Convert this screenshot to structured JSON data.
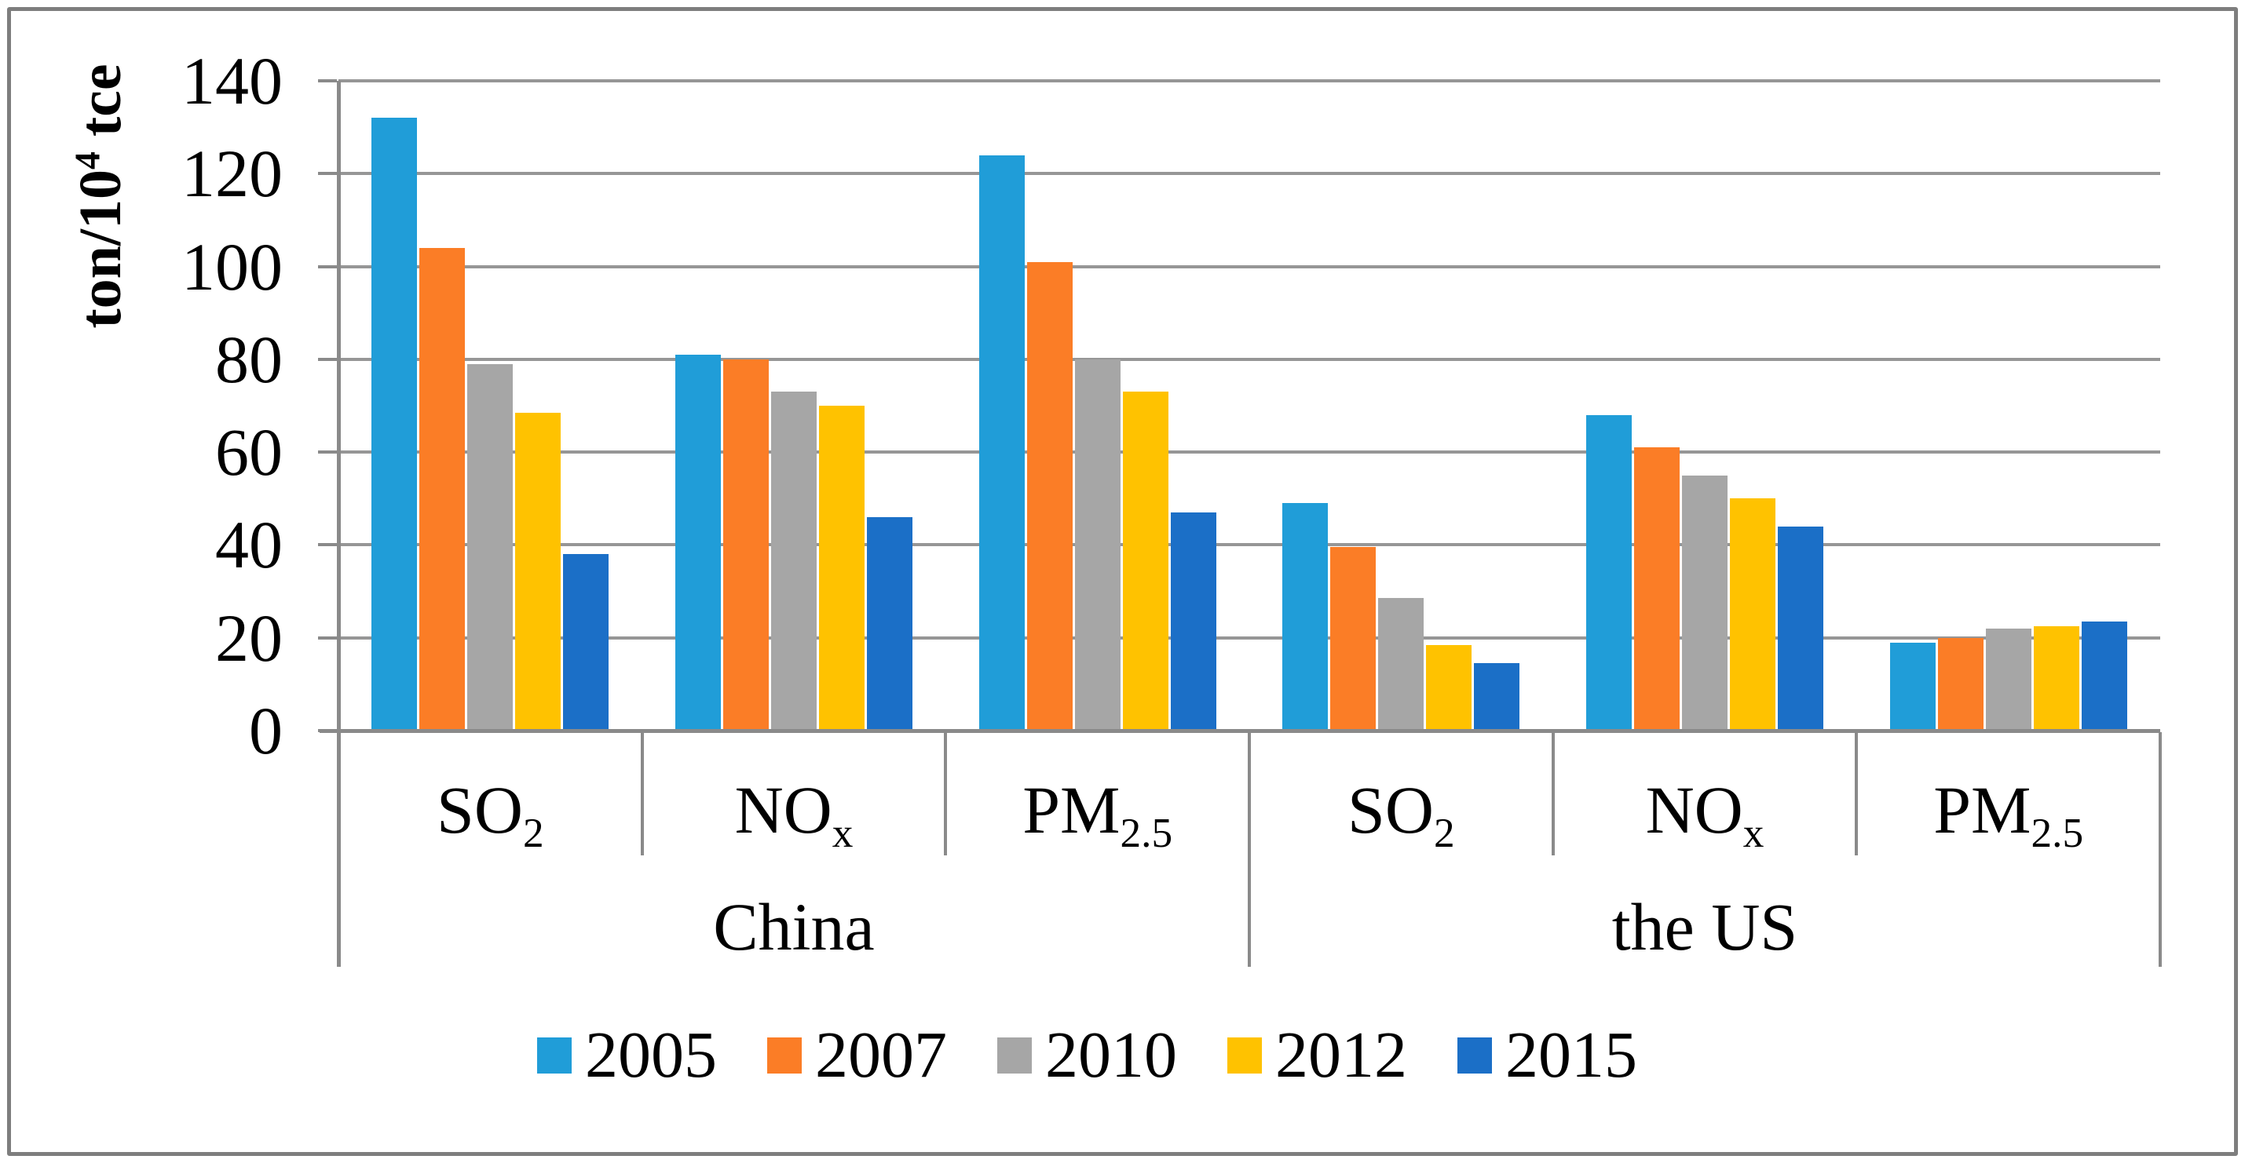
{
  "figure": {
    "background": "#ffffff",
    "frame_border_color": "#7e7e7e",
    "gridline_color": "#969696",
    "axis_color": "#8a8a8a"
  },
  "y_axis_title": {
    "prefix": "ton/10",
    "superscript": "4",
    "suffix": " tce"
  },
  "chart_data": {
    "type": "bar",
    "title": "",
    "ylabel": "ton/10^4 tce",
    "xlabel": "",
    "ylim": [
      0,
      140
    ],
    "ytick_step": 20,
    "y_tick_labels": [
      "0",
      "20",
      "40",
      "60",
      "80",
      "100",
      "120",
      "140"
    ],
    "grid": "horizontal",
    "legend_position": "bottom",
    "group_labels": [
      "China",
      "the US"
    ],
    "categories": [
      {
        "group": "China",
        "base": "SO",
        "sub": "2"
      },
      {
        "group": "China",
        "base": "NO",
        "sub": "x"
      },
      {
        "group": "China",
        "base": "PM",
        "sub": "2.5"
      },
      {
        "group": "the US",
        "base": "SO",
        "sub": "2"
      },
      {
        "group": "the US",
        "base": "NO",
        "sub": "x"
      },
      {
        "group": "the US",
        "base": "PM",
        "sub": "2.5"
      }
    ],
    "series": [
      {
        "name": "2005",
        "color": "#209DD8",
        "values": [
          132,
          81,
          124,
          49,
          68,
          19
        ]
      },
      {
        "name": "2007",
        "color": "#FB7D26",
        "values": [
          104,
          80,
          101,
          39.5,
          61,
          20
        ]
      },
      {
        "name": "2010",
        "color": "#A6A6A6",
        "values": [
          79,
          73,
          80,
          28.5,
          55,
          22
        ]
      },
      {
        "name": "2012",
        "color": "#FFC200",
        "values": [
          68.5,
          70,
          73,
          18.5,
          50,
          22.5
        ]
      },
      {
        "name": "2015",
        "color": "#1B6FC7",
        "values": [
          38,
          46,
          47,
          14.5,
          44,
          23.5
        ]
      }
    ]
  }
}
